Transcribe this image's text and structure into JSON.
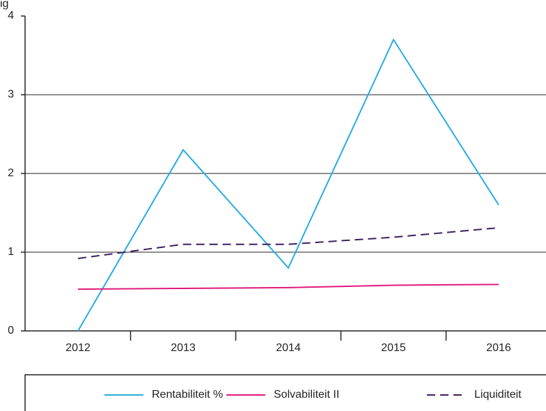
{
  "chart_data": {
    "type": "line",
    "title": "ig",
    "categories": [
      "2012",
      "2013",
      "2014",
      "2015",
      "2016"
    ],
    "series": [
      {
        "name": "Rentabiliteit %",
        "color": "#29abe2",
        "dash": false,
        "values": [
          0,
          2.3,
          0.8,
          3.7,
          1.6
        ]
      },
      {
        "name": "Solvabiliteit II",
        "color": "#e0197d",
        "dash": false,
        "values": [
          0.53,
          0.54,
          0.55,
          0.58,
          0.59
        ]
      },
      {
        "name": "Liquiditeit",
        "color": "#3d1f5e",
        "dash": true,
        "values": [
          0.92,
          1.1,
          1.1,
          1.19,
          1.31
        ]
      }
    ],
    "ylim": [
      0,
      4
    ],
    "yticks": [
      0,
      1,
      2,
      3,
      4
    ],
    "grid": true,
    "legend": "bottom"
  }
}
